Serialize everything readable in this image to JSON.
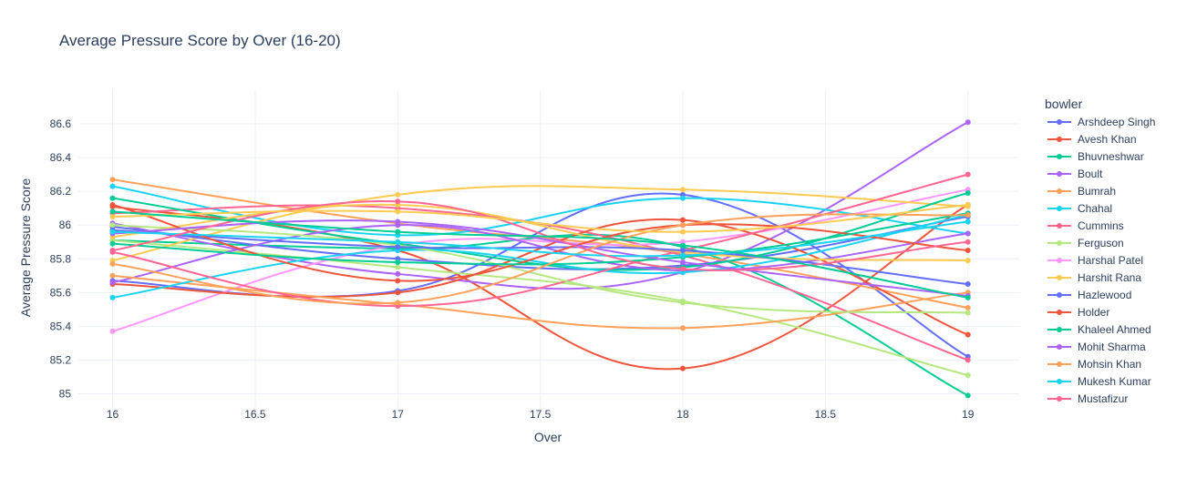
{
  "chart_data": {
    "type": "line",
    "title": "Average Pressure Score by Over (16-20)",
    "xlabel": "Over",
    "ylabel": "Average Pressure Score",
    "xlim": [
      15.88,
      19.18
    ],
    "ylim": [
      84.9,
      86.8
    ],
    "xticks": [
      16,
      16.5,
      17,
      17.5,
      18,
      18.5,
      19
    ],
    "xtick_labels": [
      "16",
      "16.5",
      "17",
      "17.5",
      "18",
      "18.5",
      "19"
    ],
    "yticks": [
      85,
      85.2,
      85.4,
      85.6,
      85.8,
      86,
      86.2,
      86.4,
      86.6
    ],
    "ytick_labels": [
      "85",
      "85.2",
      "85.4",
      "85.6",
      "85.8",
      "86",
      "86.2",
      "86.4",
      "86.6"
    ],
    "grid": true,
    "legend_title": "bowler",
    "legend_position": "right",
    "x": [
      16,
      17,
      18,
      19
    ],
    "series": [
      {
        "name": "Arshdeep Singh",
        "color": "#636efa",
        "values": [
          85.67,
          85.61,
          86.18,
          85.22
        ]
      },
      {
        "name": "Avesh Khan",
        "color": "#EF553B",
        "values": [
          86.11,
          85.85,
          85.15,
          86.12
        ]
      },
      {
        "name": "Bhuvneshwar",
        "color": "#00cc96",
        "values": [
          85.91,
          85.86,
          85.87,
          84.99
        ]
      },
      {
        "name": "Boult",
        "color": "#ab63fa",
        "values": [
          86.01,
          85.71,
          85.72,
          86.61
        ]
      },
      {
        "name": "Bumrah",
        "color": "#FFA15A",
        "values": [
          86.27,
          86.01,
          85.83,
          85.51
        ]
      },
      {
        "name": "Chahal",
        "color": "#19d3f3",
        "values": [
          86.23,
          85.94,
          86.16,
          85.95
        ]
      },
      {
        "name": "Cummins",
        "color": "#FF6692",
        "values": [
          86.07,
          86.1,
          85.82,
          85.2
        ]
      },
      {
        "name": "Ferguson",
        "color": "#B6E880",
        "values": [
          85.91,
          85.75,
          85.55,
          85.11
        ]
      },
      {
        "name": "Harshal Patel",
        "color": "#FF97FF",
        "values": [
          85.37,
          85.88,
          85.9,
          86.21
        ]
      },
      {
        "name": "Harshit Rana",
        "color": "#FECB52",
        "values": [
          85.79,
          86.18,
          86.21,
          86.11
        ]
      },
      {
        "name": "Hazlewood",
        "color": "#636efa",
        "values": [
          85.99,
          85.8,
          85.76,
          86.05
        ]
      },
      {
        "name": "Holder",
        "color": "#EF553B",
        "values": [
          85.65,
          85.6,
          86.03,
          85.35
        ]
      },
      {
        "name": "Khaleel Ahmed",
        "color": "#00cc96",
        "values": [
          86.16,
          85.89,
          85.75,
          86.19
        ]
      },
      {
        "name": "Mohit Sharma",
        "color": "#ab63fa",
        "values": [
          85.66,
          86.0,
          85.73,
          85.95
        ]
      },
      {
        "name": "Mohsin Khan",
        "color": "#FFA15A",
        "values": [
          85.7,
          85.53,
          85.39,
          85.6
        ]
      },
      {
        "name": "Mukesh Kumar",
        "color": "#19d3f3",
        "values": [
          85.57,
          85.85,
          85.72,
          86.06
        ]
      },
      {
        "name": "Mustafizur",
        "color": "#FF6692",
        "values": [
          85.84,
          85.52,
          85.85,
          86.3
        ]
      },
      {
        "name": "",
        "color": "#B6E880",
        "values": [
          86.0,
          85.88,
          85.54,
          85.48
        ]
      },
      {
        "name": "",
        "color": "#FECB52",
        "values": [
          85.93,
          86.12,
          85.84,
          85.79
        ]
      },
      {
        "name": "",
        "color": "#636efa",
        "values": [
          85.97,
          85.87,
          85.85,
          85.65
        ]
      },
      {
        "name": "",
        "color": "#EF553B",
        "values": [
          86.12,
          85.67,
          86.0,
          85.85
        ]
      },
      {
        "name": "",
        "color": "#00cc96",
        "values": [
          85.89,
          85.78,
          85.81,
          86.07
        ]
      },
      {
        "name": "",
        "color": "#ab63fa",
        "values": [
          85.95,
          86.02,
          85.78,
          85.58
        ]
      },
      {
        "name": "",
        "color": "#FFA15A",
        "values": [
          85.77,
          85.54,
          86.0,
          86.06
        ]
      },
      {
        "name": "",
        "color": "#19d3f3",
        "values": [
          85.96,
          85.9,
          85.82,
          86.02
        ]
      },
      {
        "name": "",
        "color": "#FF6692",
        "values": [
          85.85,
          86.14,
          85.74,
          85.9
        ]
      },
      {
        "name": "",
        "color": "#FECB52",
        "values": [
          86.05,
          86.08,
          85.96,
          86.12
        ]
      },
      {
        "name": "",
        "color": "#00cc96",
        "values": [
          86.08,
          85.96,
          85.88,
          85.57
        ]
      }
    ]
  }
}
